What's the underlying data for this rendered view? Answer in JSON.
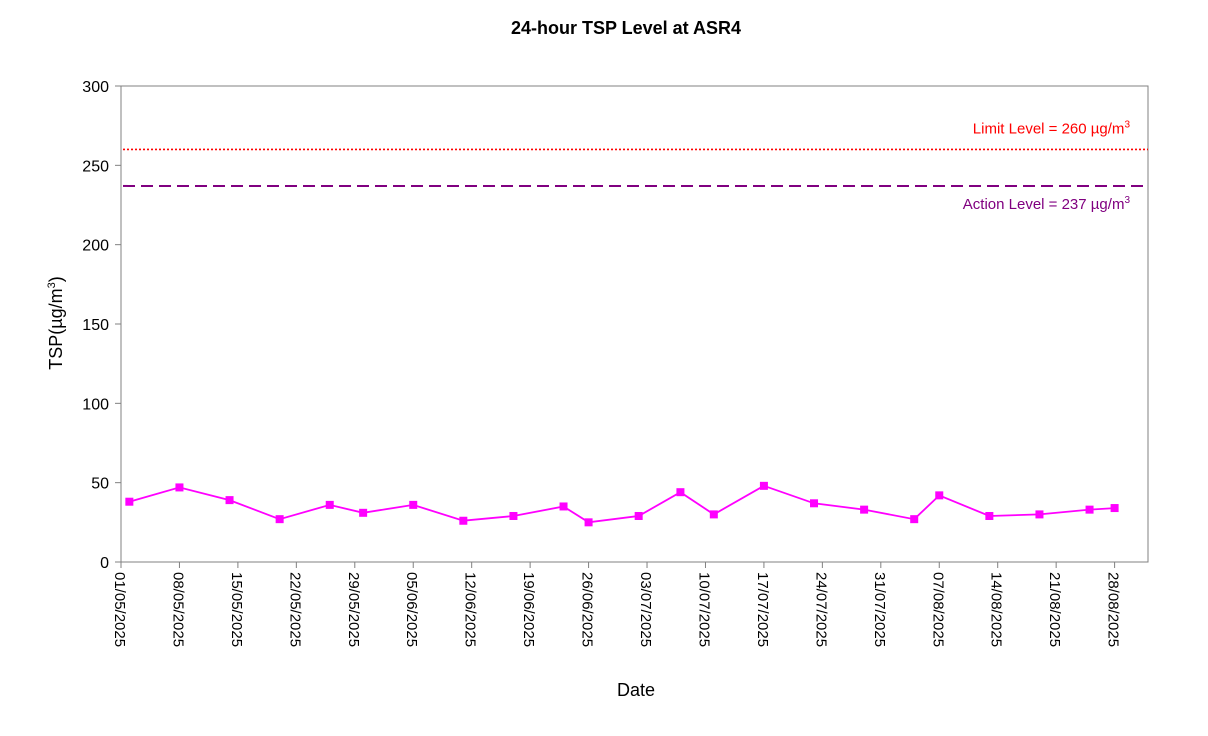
{
  "chart_data": {
    "type": "line",
    "title": "24-hour TSP Level at ASR4",
    "xlabel": "Date",
    "ylabel": "TSP(µg/m",
    "ylabel_sup": "3",
    "ylabel_close": ")",
    "ylim": [
      0,
      300
    ],
    "yticks": [
      "0",
      "50",
      "100",
      "150",
      "200",
      "250",
      "300"
    ],
    "x_range": [
      "2025-05-01",
      "2025-09-01"
    ],
    "xticks": [
      "01/05/2025",
      "08/05/2025",
      "15/05/2025",
      "22/05/2025",
      "29/05/2025",
      "05/06/2025",
      "12/06/2025",
      "19/06/2025",
      "26/06/2025",
      "03/07/2025",
      "10/07/2025",
      "17/07/2025",
      "24/07/2025",
      "31/07/2025",
      "07/08/2025",
      "14/08/2025",
      "21/08/2025",
      "28/08/2025"
    ],
    "grid": false,
    "series": [
      {
        "color": "#FF00FF",
        "marker": "square",
        "x": [
          "2025-05-02",
          "2025-05-08",
          "2025-05-14",
          "2025-05-20",
          "2025-05-26",
          "2025-05-30",
          "2025-06-05",
          "2025-06-11",
          "2025-06-17",
          "2025-06-23",
          "2025-06-26",
          "2025-07-02",
          "2025-07-07",
          "2025-07-11",
          "2025-07-17",
          "2025-07-23",
          "2025-07-29",
          "2025-08-04",
          "2025-08-07",
          "2025-08-13",
          "2025-08-19",
          "2025-08-25",
          "2025-08-28"
        ],
        "y": [
          38,
          47,
          39,
          27,
          36,
          31,
          36,
          26,
          29,
          35,
          25,
          29,
          44,
          30,
          48,
          37,
          33,
          27,
          42,
          29,
          30,
          33,
          34
        ]
      }
    ],
    "reference_lines": [
      {
        "value": 260,
        "label": "Limit Level = 260 µg/m",
        "sup": "3",
        "color": "#FF0000",
        "style": "dotted"
      },
      {
        "value": 237,
        "label": "Action Level = 237 µg/m",
        "sup": "3",
        "color": "#800080",
        "style": "dashed"
      }
    ]
  }
}
